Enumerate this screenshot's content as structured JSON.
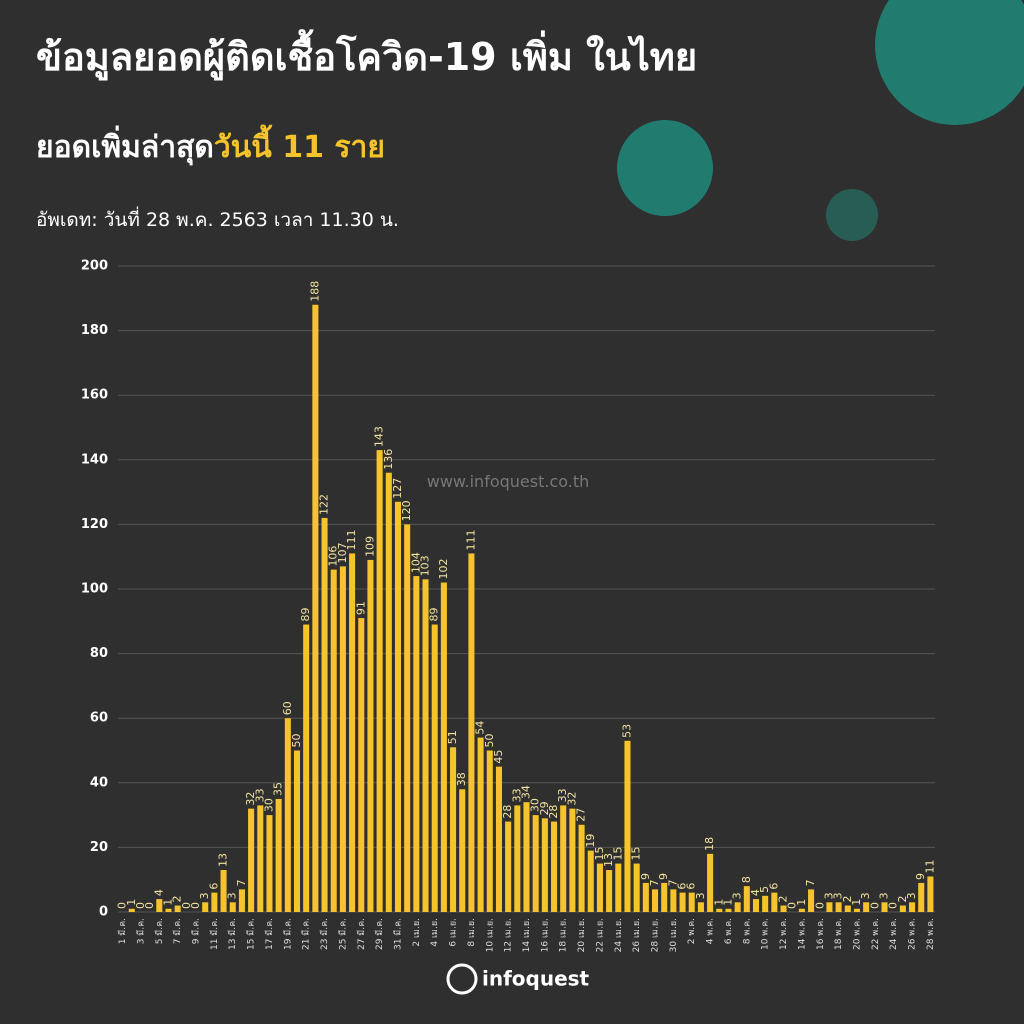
{
  "chart_data": {
    "type": "bar",
    "title": "ข้อมูลยอดผู้ติดเชื้อโควิด-19 เพิ่ม ในไทย",
    "subtitle": "ยอดเพิ่มล่าสุด",
    "subtitle_highlight": "วันนี้ 11 ราย",
    "update_note": "อัพเดท: วันที่ 28 พ.ค. 2563 เวลา 11.30 น.",
    "watermark": "www.infoquest.co.th",
    "logo": "infoquest",
    "categories": [
      "1 มี.ค.",
      null,
      "3 มี.ค.",
      null,
      "5 มี.ค.",
      null,
      "7 มี.ค.",
      null,
      "9 มี.ค.",
      null,
      "11 มี.ค.",
      null,
      "13 มี.ค.",
      null,
      "15 มี.ค.",
      null,
      "17 มี.ค.",
      null,
      "19 มี.ค.",
      null,
      "21 มี.ค.",
      null,
      "23 มี.ค.",
      null,
      "25 มี.ค.",
      null,
      "27 มี.ค.",
      null,
      "29 มี.ค.",
      null,
      "31 มี.ค.",
      null,
      "2 เม.ย.",
      null,
      "4 เม.ย.",
      null,
      "6 เม.ย.",
      null,
      "8 เม.ย.",
      null,
      "10 เม.ย.",
      null,
      "12 เม.ย.",
      null,
      "14 เม.ย.",
      null,
      "16 เม.ย.",
      null,
      "18 เม.ย.",
      null,
      "20 เม.ย.",
      null,
      "22 เม.ย.",
      null,
      "24 เม.ย.",
      null,
      "26 เม.ย.",
      null,
      "28 เม.ย.",
      null,
      "30 เม.ย.",
      null,
      "2 พ.ค.",
      null,
      "4 พ.ค.",
      null,
      "6 พ.ค.",
      null,
      "8 พ.ค.",
      null,
      "10 พ.ค.",
      null,
      "12 พ.ค.",
      null,
      "14 พ.ค.",
      null,
      "16 พ.ค.",
      null,
      "18 พ.ค.",
      null,
      "20 พ.ค.",
      null,
      "22 พ.ค.",
      null,
      "24 พ.ค.",
      null,
      "26 พ.ค.",
      null,
      "28 พ.ค."
    ],
    "values": [
      0,
      1,
      0,
      0,
      4,
      1,
      2,
      0,
      0,
      3,
      6,
      13,
      3,
      7,
      32,
      33,
      30,
      35,
      60,
      50,
      89,
      188,
      122,
      106,
      107,
      111,
      91,
      109,
      143,
      136,
      127,
      120,
      104,
      103,
      89,
      102,
      51,
      38,
      111,
      54,
      50,
      45,
      28,
      33,
      34,
      30,
      29,
      28,
      33,
      32,
      27,
      19,
      15,
      13,
      15,
      53,
      15,
      9,
      7,
      9,
      7,
      6,
      6,
      3,
      18,
      1,
      1,
      3,
      8,
      4,
      5,
      6,
      2,
      0,
      1,
      7,
      0,
      3,
      3,
      2,
      1,
      3,
      0,
      3,
      0,
      2,
      3,
      9,
      11
    ],
    "color": "#f5c32c",
    "ylim": [
      0,
      200
    ],
    "yticks": [
      0,
      20,
      40,
      60,
      80,
      100,
      120,
      140,
      160,
      180,
      200
    ],
    "grid": true
  }
}
